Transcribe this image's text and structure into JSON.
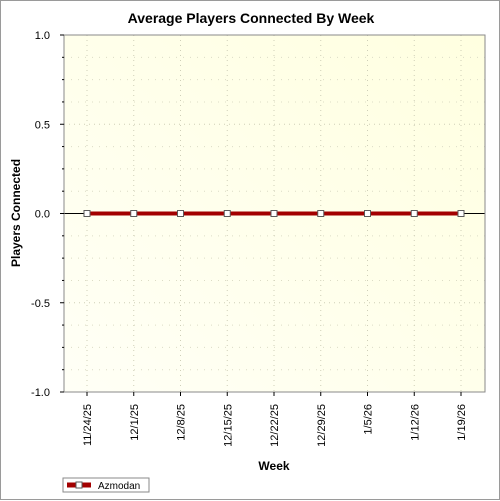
{
  "chart_data": {
    "type": "line",
    "title": "Average Players Connected By Week",
    "xlabel": "Week",
    "ylabel": "Players Connected",
    "categories": [
      "11/24/25",
      "12/1/25",
      "12/8/25",
      "12/15/25",
      "12/22/25",
      "12/29/25",
      "1/5/26",
      "1/12/26",
      "1/19/26"
    ],
    "series": [
      {
        "name": "Azmodan",
        "values": [
          0,
          0,
          0,
          0,
          0,
          0,
          0,
          0,
          0
        ],
        "color": "#a30000"
      }
    ],
    "ylim": [
      -1.0,
      1.0
    ],
    "yticks": [
      1.0,
      0.5,
      0.0,
      -0.5,
      -1.0
    ],
    "ytick_labels": [
      "1.0",
      "0.5",
      "0.0",
      "-0.5",
      "-1.0"
    ],
    "grid": true,
    "legend_position": "bottom-left",
    "plot_background": [
      "#ffffe0",
      "#fffff6"
    ]
  }
}
